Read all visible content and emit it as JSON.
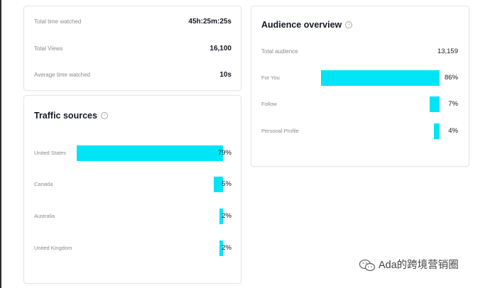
{
  "stats": {
    "rows": [
      {
        "label": "Total time watched",
        "value": "45h:25m:25s"
      },
      {
        "label": "Total Views",
        "value": "16,100"
      },
      {
        "label": "Average time watched",
        "value": "10s"
      }
    ]
  },
  "traffic": {
    "title": "Traffic sources",
    "info_icon": "ⓘ",
    "rows": [
      {
        "label": "United States",
        "percent": 79,
        "percent_label": "79%"
      },
      {
        "label": "Canada",
        "percent": 5,
        "percent_label": "5%"
      },
      {
        "label": "Australia",
        "percent": 2,
        "percent_label": "2%"
      },
      {
        "label": "United Kingdom",
        "percent": 2,
        "percent_label": "2%"
      }
    ]
  },
  "audience": {
    "title": "Audience overview",
    "info_icon": "ⓘ",
    "total_label": "Total audience",
    "total_value": "13,159",
    "rows": [
      {
        "label": "For You",
        "percent": 86,
        "percent_label": "86%"
      },
      {
        "label": "Follow",
        "percent": 7,
        "percent_label": "7%"
      },
      {
        "label": "Personal Profile",
        "percent": 4,
        "percent_label": "4%"
      }
    ]
  },
  "watermark": {
    "text": "Ada的跨境营销圈",
    "icon": "wechat-icon"
  },
  "colors": {
    "bar": "#00e5f5",
    "label": "#8a8b91",
    "text": "#161823",
    "border": "#e6e6e9"
  }
}
